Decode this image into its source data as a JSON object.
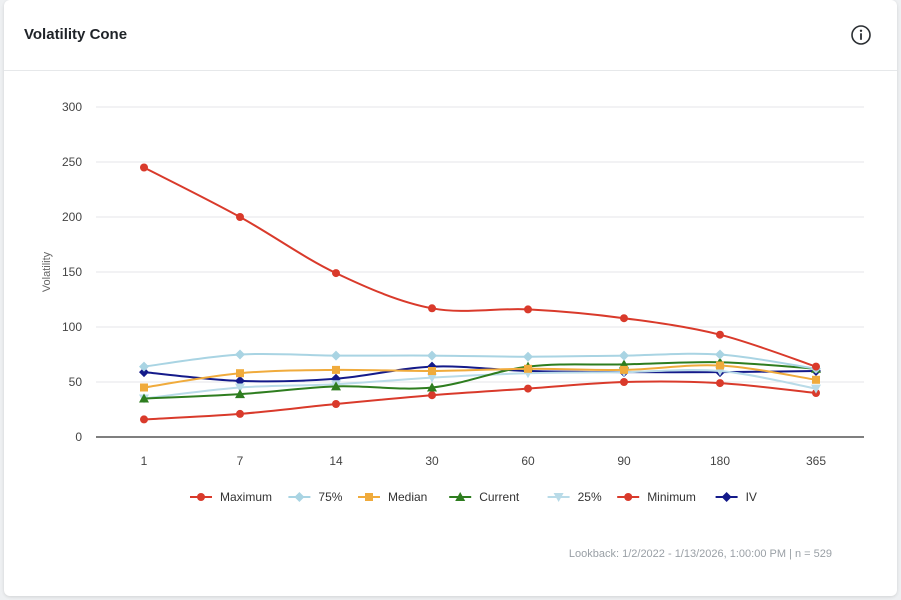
{
  "card": {
    "title": "Volatility Cone",
    "info_icon": "info-icon"
  },
  "footer": {
    "lookback_label": "Lookback:",
    "lookback_range": "1/2/2022 - 1/13/2026, 1:00:00 PM",
    "separator": "|",
    "sample": "n = 529"
  },
  "chart_data": {
    "type": "line",
    "title": "Volatility Cone",
    "xlabel": "",
    "ylabel": "Volatility",
    "categories": [
      "1",
      "7",
      "14",
      "30",
      "60",
      "90",
      "180",
      "365"
    ],
    "ylim": [
      0,
      300
    ],
    "yticks": [
      0,
      50,
      100,
      150,
      200,
      250,
      300
    ],
    "grid": true,
    "legend_position": "bottom",
    "series": [
      {
        "name": "Maximum",
        "color": "#d93a2b",
        "marker": "circle",
        "values": [
          245,
          200,
          149,
          117,
          116,
          108,
          93,
          64
        ]
      },
      {
        "name": "75%",
        "color": "#a9d4e3",
        "marker": "diamond",
        "values": [
          64,
          75,
          74,
          74,
          73,
          74,
          75,
          62
        ]
      },
      {
        "name": "Median",
        "color": "#f0ab3c",
        "marker": "square",
        "values": [
          45,
          58,
          61,
          60,
          62,
          61,
          65,
          52
        ]
      },
      {
        "name": "Current",
        "color": "#2e7d1f",
        "marker": "triangle",
        "values": [
          35,
          39,
          46,
          45,
          64,
          66,
          68,
          62
        ]
      },
      {
        "name": "25%",
        "color": "#b9dbe8",
        "marker": "triangle-down",
        "values": [
          35,
          45,
          48,
          54,
          58,
          59,
          60,
          44
        ]
      },
      {
        "name": "Minimum",
        "color": "#d93a2b",
        "marker": "circle",
        "values": [
          16,
          21,
          30,
          38,
          44,
          50,
          49,
          40
        ]
      },
      {
        "name": "IV",
        "color": "#141a8a",
        "marker": "diamond",
        "values": [
          59,
          51,
          53,
          64,
          60,
          59,
          59,
          60
        ]
      }
    ]
  }
}
